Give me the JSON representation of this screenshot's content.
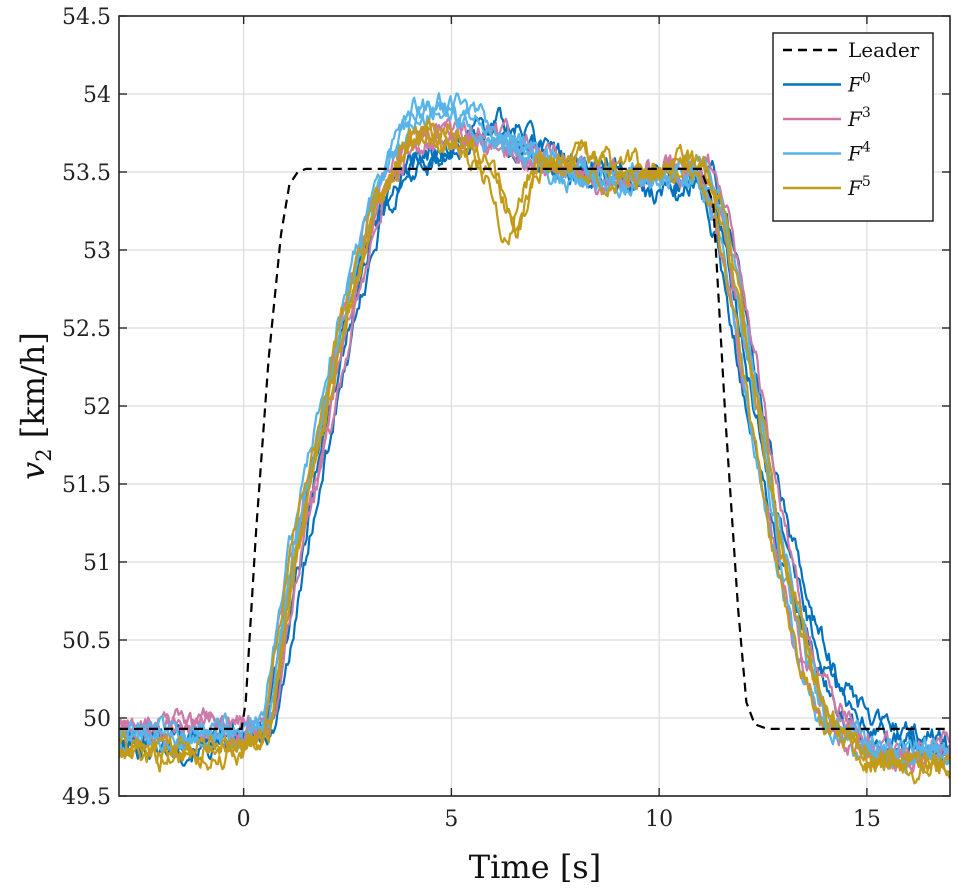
{
  "chart_data": {
    "type": "line",
    "title": "",
    "xlabel": "Time [s]",
    "ylabel_main": "v",
    "ylabel_sub": "2",
    "ylabel_unit": " [km/h]",
    "xlim": [
      -3,
      17
    ],
    "ylim": [
      49.5,
      54.5
    ],
    "xticks": [
      0,
      5,
      10,
      15
    ],
    "yticks": [
      49.5,
      50,
      50.5,
      51,
      51.5,
      52,
      52.5,
      53,
      53.5,
      54,
      54.5
    ],
    "ytick_labels": [
      "49.5",
      "50",
      "50.5",
      "51",
      "51.5",
      "52",
      "52.5",
      "53",
      "53.5",
      "54",
      "54.5"
    ],
    "grid": true,
    "legend_position": "top-right",
    "leader": {
      "name": "Leader",
      "color": "#000000",
      "style": "dashed",
      "x": [
        -3,
        -0.05,
        0.05,
        0.3,
        0.6,
        0.9,
        1.1,
        1.3,
        1.5,
        11.0,
        11.3,
        11.6,
        11.9,
        12.1,
        12.3,
        12.6,
        17
      ],
      "y": [
        49.93,
        49.93,
        50.1,
        51.2,
        52.3,
        53.1,
        53.42,
        53.5,
        53.52,
        53.52,
        53.3,
        51.9,
        50.7,
        50.1,
        49.96,
        49.93,
        49.93
      ]
    },
    "series": [
      {
        "name": "F",
        "superscript": "0",
        "color": "#0072BD",
        "x": [
          -3,
          0,
          0.6,
          1.2,
          2.0,
          2.6,
          3.2,
          4.0,
          5.0,
          6.0,
          6.6,
          7.5,
          8.5,
          9.5,
          10.5,
          11.1,
          11.6,
          12.2,
          13.0,
          13.6,
          14.2,
          15.0,
          16.0,
          17
        ],
        "y": [
          49.85,
          49.85,
          49.9,
          50.8,
          51.9,
          52.6,
          53.2,
          53.55,
          53.65,
          53.8,
          53.7,
          53.55,
          53.5,
          53.45,
          53.4,
          53.5,
          53.0,
          52.1,
          51.1,
          50.6,
          50.2,
          49.9,
          49.85,
          49.8
        ]
      },
      {
        "name": "F",
        "superscript": "3",
        "color": "#CC79A7",
        "x": [
          -3,
          0,
          0.6,
          1.2,
          2.0,
          2.6,
          3.2,
          4.0,
          5.0,
          6.0,
          7.0,
          8.0,
          9.0,
          10.0,
          11.0,
          11.5,
          12.2,
          12.8,
          13.4,
          14.0,
          15.0,
          16.0,
          17
        ],
        "y": [
          49.95,
          49.92,
          49.95,
          51.0,
          51.9,
          52.7,
          53.3,
          53.7,
          53.75,
          53.7,
          53.6,
          53.5,
          53.45,
          53.5,
          53.55,
          53.2,
          52.2,
          51.3,
          50.5,
          50.05,
          49.8,
          49.75,
          49.8
        ]
      },
      {
        "name": "F",
        "superscript": "4",
        "color": "#56B4E9",
        "x": [
          -3,
          0,
          0.6,
          1.2,
          2.0,
          2.6,
          3.2,
          4.0,
          5.0,
          6.0,
          7.0,
          8.0,
          9.0,
          10.0,
          11.0,
          11.5,
          12.2,
          12.8,
          13.4,
          14.0,
          15.0,
          16.0,
          17
        ],
        "y": [
          49.88,
          49.88,
          50.0,
          51.1,
          52.1,
          52.8,
          53.4,
          53.85,
          53.9,
          53.75,
          53.6,
          53.5,
          53.45,
          53.5,
          53.5,
          53.2,
          52.2,
          51.2,
          50.5,
          50.0,
          49.8,
          49.75,
          49.75
        ]
      },
      {
        "name": "F",
        "superscript": "5",
        "color": "#C39B18",
        "x": [
          -3,
          0,
          0.6,
          1.2,
          2.0,
          2.6,
          3.2,
          4.0,
          5.0,
          6.0,
          6.5,
          7.0,
          8.0,
          9.0,
          10.0,
          11.0,
          11.5,
          12.2,
          12.8,
          13.4,
          14.0,
          15.0,
          16.0,
          17
        ],
        "y": [
          49.78,
          49.8,
          49.9,
          51.0,
          52.0,
          52.7,
          53.3,
          53.7,
          53.75,
          53.5,
          53.1,
          53.5,
          53.6,
          53.5,
          53.5,
          53.55,
          53.2,
          52.2,
          51.2,
          50.5,
          50.0,
          49.75,
          49.7,
          49.7
        ]
      }
    ]
  }
}
